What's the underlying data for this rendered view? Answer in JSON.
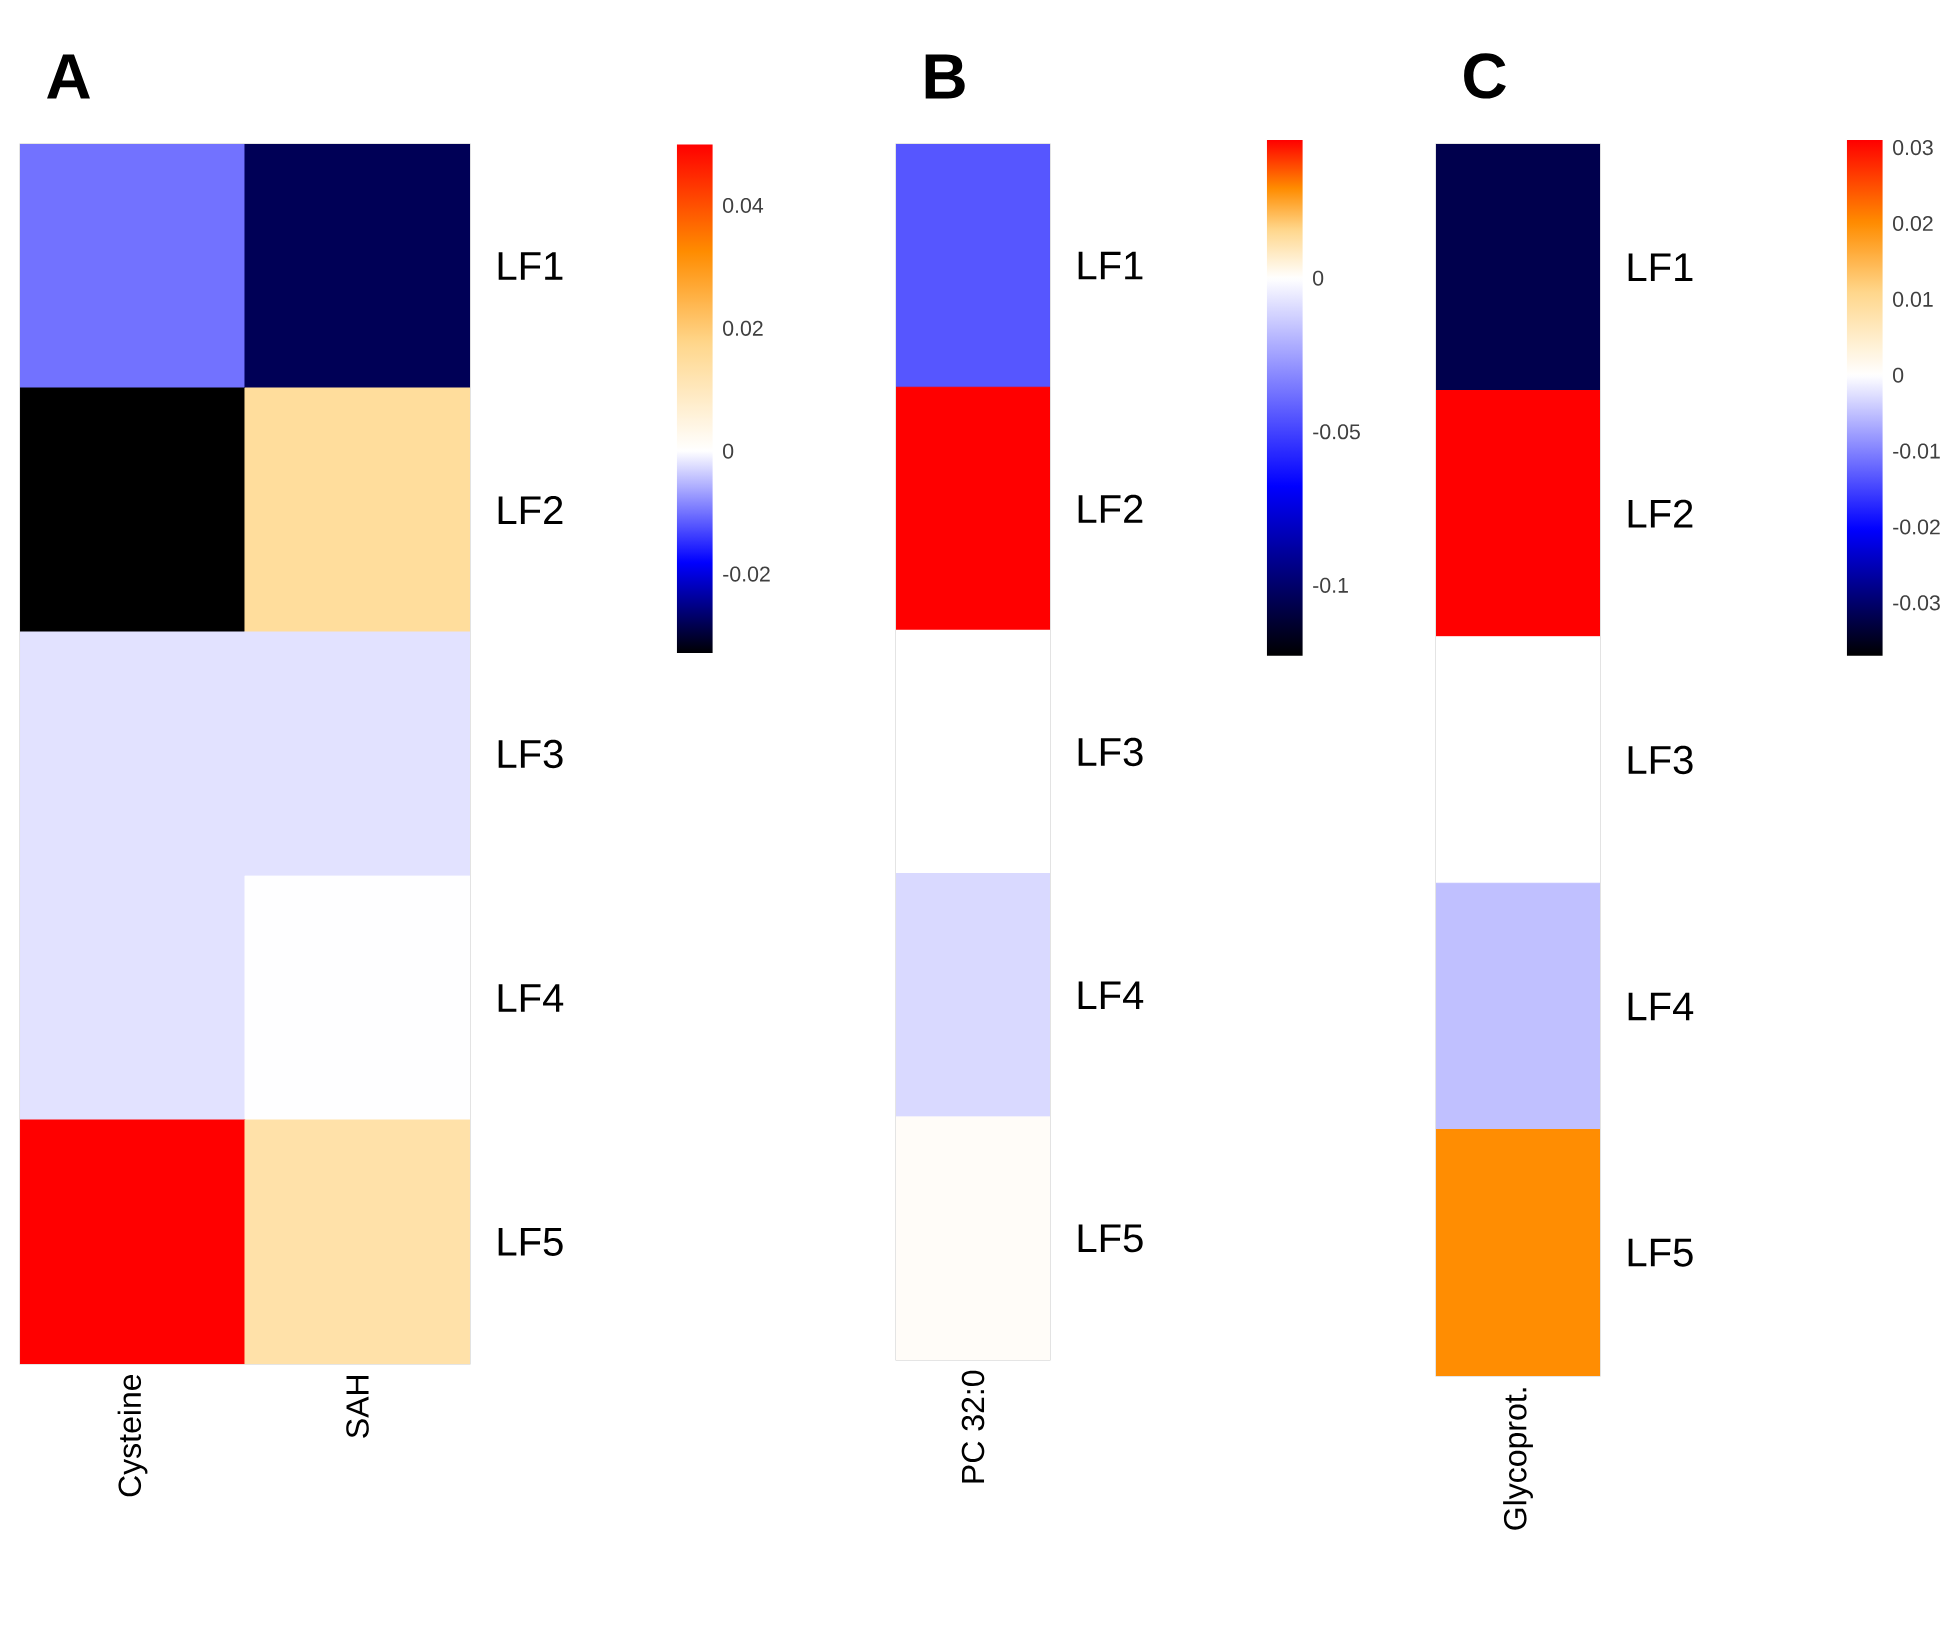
{
  "chart_data": [
    {
      "type": "heatmap",
      "title": "A",
      "categories": [
        "Cysteine",
        "SAH"
      ],
      "y_categories": [
        "LF1",
        "LF2",
        "LF3",
        "LF4",
        "LF5"
      ],
      "cells": [
        [
          -0.01,
          -0.028
        ],
        [
          -0.033,
          0.015
        ],
        [
          -0.002,
          -0.002
        ],
        [
          -0.002,
          0
        ],
        [
          0.05,
          0.013
        ]
      ],
      "clim": [
        -0.033,
        0.05
      ],
      "cticks": [
        -0.02,
        0,
        0.02,
        0.04
      ]
    },
    {
      "type": "heatmap",
      "title": "B",
      "categories": [
        "PC 32:0"
      ],
      "y_categories": [
        "LF1",
        "LF2",
        "LF3",
        "LF4",
        "LF5"
      ],
      "cells": [
        [
          -0.045
        ],
        [
          0.045
        ],
        [
          0
        ],
        [
          -0.01
        ],
        [
          0.001
        ]
      ],
      "clim": [
        -0.123,
        0.045
      ],
      "cticks": [
        -0.1,
        -0.05,
        0
      ]
    },
    {
      "type": "heatmap",
      "title": "C",
      "categories": [
        "Glycoprot."
      ],
      "y_categories": [
        "LF1",
        "LF2",
        "LF3",
        "LF4",
        "LF5"
      ],
      "cells": [
        [
          -0.032
        ],
        [
          0.031
        ],
        [
          0
        ],
        [
          -0.005
        ],
        [
          0.02
        ]
      ],
      "clim": [
        -0.037,
        0.031
      ],
      "cticks": [
        -0.03,
        -0.02,
        -0.01,
        0,
        0.01,
        0.02,
        0.03
      ]
    }
  ]
}
